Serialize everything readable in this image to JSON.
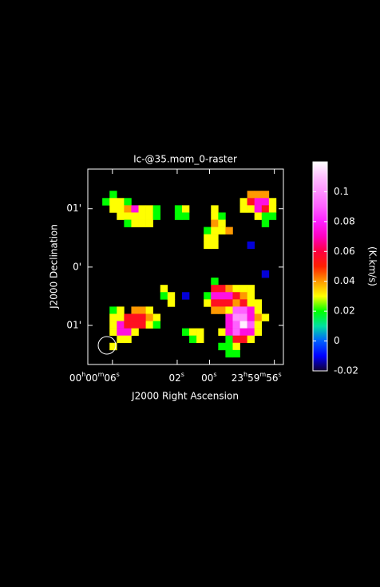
{
  "chart_data": {
    "type": "heatmap",
    "title": "Ic-@35.mom_0-raster",
    "xlabel": "J2000 Right Ascension",
    "ylabel": "J2000 Declination",
    "colorbar_label": "(K.km/s)",
    "xlim": [
      7.52,
      -4.56
    ],
    "xticks": [
      {
        "value": 6,
        "label": "00h00m06s"
      },
      {
        "value": 2,
        "label": "02s"
      },
      {
        "value": 0,
        "label": "00s"
      },
      {
        "value": -4,
        "label": "23h59m56s"
      }
    ],
    "ylim": [
      -1.67,
      1.68
    ],
    "yticks": [
      {
        "value": 1,
        "label": "01'"
      },
      {
        "value": 0,
        "label": "0'"
      },
      {
        "value": -1,
        "label": "01'"
      }
    ],
    "clim": [
      -0.02,
      0.12
    ],
    "cticks": [
      -0.02,
      0,
      0.02,
      0.04,
      0.06,
      0.08,
      0.1
    ],
    "colormap": [
      "#100030",
      "#0000ff",
      "#0060ff",
      "#00e0a0",
      "#00ff00",
      "#ffff00",
      "#ff9900",
      "#ff2000",
      "#ff0040",
      "#ff00c0",
      "#ff20ff",
      "#ff60ff",
      "#ff90ff",
      "#ffc0ff",
      "#ffffff"
    ],
    "z": [
      [
        null,
        null,
        null,
        null,
        null,
        null,
        null,
        null,
        null,
        null,
        null,
        null,
        null,
        null,
        null,
        null,
        null,
        null,
        null,
        null,
        null,
        null,
        null,
        null,
        null,
        null,
        null
      ],
      [
        null,
        null,
        null,
        null,
        null,
        null,
        null,
        null,
        null,
        null,
        null,
        null,
        null,
        null,
        null,
        null,
        null,
        null,
        null,
        null,
        null,
        null,
        null,
        null,
        null,
        null,
        null
      ],
      [
        null,
        null,
        null,
        null,
        null,
        null,
        null,
        null,
        null,
        null,
        null,
        null,
        null,
        null,
        null,
        null,
        null,
        null,
        null,
        null,
        null,
        null,
        null,
        null,
        null,
        null,
        null
      ],
      [
        null,
        null,
        null,
        0.02,
        null,
        null,
        null,
        null,
        null,
        null,
        null,
        null,
        null,
        null,
        null,
        null,
        null,
        null,
        null,
        null,
        null,
        null,
        0.04,
        0.04,
        0.04,
        null,
        null
      ],
      [
        null,
        null,
        0.02,
        0.03,
        0.03,
        0.02,
        null,
        null,
        null,
        null,
        null,
        null,
        null,
        null,
        null,
        null,
        null,
        null,
        null,
        null,
        null,
        0.03,
        0.055,
        0.075,
        0.075,
        0.03,
        null
      ],
      [
        null,
        null,
        null,
        0.03,
        0.03,
        0.04,
        0.075,
        0.03,
        0.03,
        0.02,
        null,
        null,
        0.02,
        0.03,
        null,
        null,
        null,
        0.03,
        null,
        null,
        null,
        0.03,
        0.03,
        0.075,
        0.055,
        0.03,
        null
      ],
      [
        null,
        null,
        null,
        null,
        0.03,
        0.03,
        0.03,
        0.03,
        0.03,
        0.02,
        null,
        null,
        0.02,
        0.02,
        null,
        null,
        null,
        0.03,
        0.02,
        null,
        null,
        null,
        null,
        0.03,
        0.02,
        0.02,
        null
      ],
      [
        null,
        null,
        null,
        null,
        null,
        0.02,
        0.03,
        0.03,
        0.03,
        null,
        null,
        null,
        null,
        null,
        null,
        null,
        null,
        0.04,
        0.03,
        null,
        null,
        null,
        null,
        null,
        0.02,
        null,
        null
      ],
      [
        null,
        null,
        null,
        null,
        null,
        null,
        null,
        null,
        null,
        null,
        null,
        null,
        null,
        null,
        null,
        null,
        0.02,
        0.03,
        0.03,
        0.04,
        null,
        null,
        null,
        null,
        null,
        null,
        null
      ],
      [
        null,
        null,
        null,
        null,
        null,
        null,
        null,
        null,
        null,
        null,
        null,
        null,
        null,
        null,
        null,
        null,
        0.03,
        0.03,
        null,
        null,
        null,
        null,
        null,
        null,
        null,
        null,
        null
      ],
      [
        null,
        null,
        null,
        null,
        null,
        null,
        null,
        null,
        null,
        null,
        null,
        null,
        null,
        null,
        null,
        null,
        0.03,
        0.03,
        null,
        null,
        null,
        null,
        -0.012,
        null,
        null,
        null,
        null
      ],
      [
        null,
        null,
        null,
        null,
        null,
        null,
        null,
        null,
        null,
        null,
        null,
        null,
        null,
        null,
        null,
        null,
        null,
        null,
        null,
        null,
        null,
        null,
        null,
        null,
        null,
        null,
        null
      ],
      [
        null,
        null,
        null,
        null,
        null,
        null,
        null,
        null,
        null,
        null,
        null,
        null,
        null,
        null,
        null,
        null,
        null,
        null,
        null,
        null,
        null,
        null,
        null,
        null,
        null,
        null,
        null
      ],
      [
        null,
        null,
        null,
        null,
        null,
        null,
        null,
        null,
        null,
        null,
        null,
        null,
        null,
        null,
        null,
        null,
        null,
        null,
        null,
        null,
        null,
        null,
        null,
        null,
        null,
        null,
        null
      ],
      [
        null,
        null,
        null,
        null,
        null,
        null,
        null,
        null,
        null,
        null,
        null,
        null,
        null,
        null,
        null,
        null,
        null,
        null,
        null,
        null,
        null,
        null,
        null,
        null,
        -0.012,
        null,
        null
      ],
      [
        null,
        null,
        null,
        null,
        null,
        null,
        null,
        null,
        null,
        null,
        null,
        null,
        null,
        null,
        null,
        null,
        null,
        0.02,
        null,
        null,
        null,
        null,
        null,
        null,
        null,
        null,
        null
      ],
      [
        null,
        null,
        null,
        null,
        null,
        null,
        null,
        null,
        null,
        null,
        0.03,
        null,
        null,
        null,
        null,
        null,
        null,
        0.055,
        0.055,
        0.04,
        0.03,
        0.03,
        0.03,
        null,
        null,
        null,
        null
      ],
      [
        null,
        null,
        null,
        null,
        null,
        null,
        null,
        null,
        null,
        null,
        0.02,
        0.03,
        null,
        -0.012,
        null,
        null,
        0.02,
        0.075,
        0.075,
        0.075,
        0.055,
        0.04,
        0.03,
        null,
        null,
        null,
        null
      ],
      [
        null,
        null,
        null,
        null,
        null,
        null,
        null,
        null,
        null,
        null,
        null,
        0.03,
        null,
        null,
        null,
        null,
        0.03,
        0.055,
        0.055,
        0.055,
        0.04,
        0.055,
        0.03,
        0.03,
        null,
        null,
        null
      ],
      [
        null,
        null,
        null,
        0.02,
        0.03,
        null,
        0.04,
        0.04,
        0.03,
        null,
        null,
        null,
        null,
        null,
        null,
        null,
        null,
        0.04,
        0.04,
        0.03,
        0.09,
        0.09,
        0.075,
        0.03,
        null,
        null,
        null
      ],
      [
        null,
        null,
        null,
        0.03,
        0.03,
        0.055,
        0.055,
        0.055,
        0.04,
        0.03,
        null,
        null,
        null,
        null,
        null,
        null,
        null,
        null,
        null,
        0.075,
        0.1,
        0.1,
        0.075,
        0.04,
        0.03,
        null,
        null
      ],
      [
        null,
        null,
        null,
        0.03,
        0.075,
        0.055,
        0.055,
        0.055,
        0.03,
        0.02,
        null,
        null,
        null,
        null,
        null,
        null,
        null,
        null,
        null,
        0.075,
        0.09,
        0.118,
        0.09,
        0.03,
        null,
        null,
        null
      ],
      [
        null,
        null,
        null,
        0.03,
        0.075,
        0.075,
        0.03,
        null,
        null,
        null,
        null,
        null,
        null,
        0.02,
        0.03,
        0.03,
        null,
        null,
        0.03,
        0.075,
        0.09,
        0.075,
        0.075,
        0.03,
        null,
        null,
        null
      ],
      [
        null,
        null,
        null,
        null,
        0.03,
        0.03,
        null,
        null,
        null,
        null,
        null,
        null,
        null,
        null,
        0.02,
        0.03,
        null,
        null,
        null,
        0.02,
        0.055,
        0.055,
        0.03,
        null,
        null,
        null,
        null
      ],
      [
        null,
        null,
        null,
        0.03,
        null,
        null,
        null,
        null,
        null,
        null,
        null,
        null,
        null,
        null,
        null,
        null,
        null,
        null,
        0.02,
        0.02,
        0.03,
        null,
        null,
        null,
        null,
        null,
        null
      ],
      [
        null,
        null,
        null,
        null,
        null,
        null,
        null,
        null,
        null,
        null,
        null,
        null,
        null,
        null,
        null,
        null,
        null,
        null,
        null,
        0.02,
        0.02,
        null,
        null,
        null,
        null,
        null,
        null
      ],
      [
        null,
        null,
        null,
        null,
        null,
        null,
        null,
        null,
        null,
        null,
        null,
        null,
        null,
        null,
        null,
        null,
        null,
        null,
        null,
        null,
        null,
        null,
        null,
        null,
        null,
        null,
        null
      ]
    ]
  }
}
